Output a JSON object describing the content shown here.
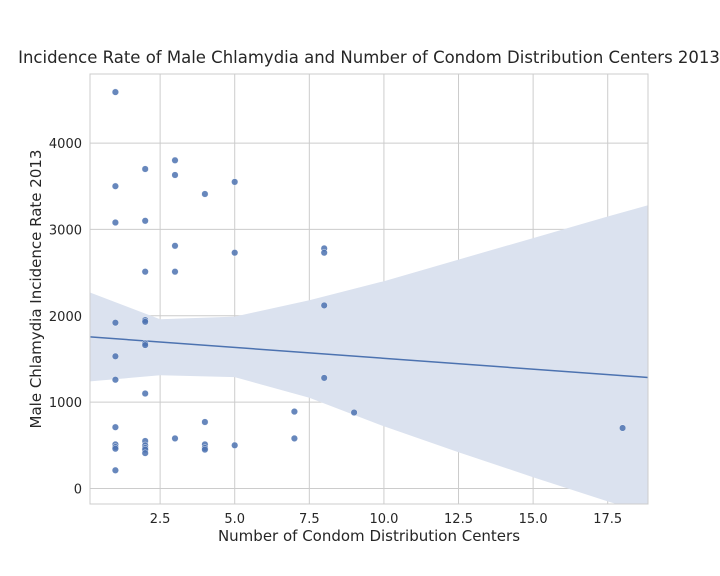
{
  "chart_data": {
    "type": "scatter",
    "title": "Incidence Rate of Male Chlamydia and Number of Condom Distribution Centers 2013",
    "xlabel": "Number of Condom Distribution Centers",
    "ylabel": "Male Chlamydia Incidence Rate 2013",
    "xlim": [
      0.15,
      18.85
    ],
    "ylim": [
      -180,
      4800
    ],
    "xticks": [
      2.5,
      5.0,
      7.5,
      10.0,
      12.5,
      15.0,
      17.5
    ],
    "xtick_labels": [
      "2.5",
      "5.0",
      "7.5",
      "10.0",
      "12.5",
      "15.0",
      "17.5"
    ],
    "yticks": [
      0,
      1000,
      2000,
      3000,
      4000
    ],
    "ytick_labels": [
      "0",
      "1000",
      "2000",
      "3000",
      "4000"
    ],
    "grid": true,
    "point_color": "#4c72b0",
    "band_color": "#dbe2ef",
    "points": [
      [
        1,
        4590
      ],
      [
        1,
        3500
      ],
      [
        1,
        3080
      ],
      [
        1,
        1920
      ],
      [
        1,
        1530
      ],
      [
        1,
        1260
      ],
      [
        1,
        710
      ],
      [
        1,
        510
      ],
      [
        1,
        480
      ],
      [
        1,
        460
      ],
      [
        1,
        210
      ],
      [
        2,
        3700
      ],
      [
        2,
        3100
      ],
      [
        2,
        2510
      ],
      [
        2,
        1950
      ],
      [
        2,
        1930
      ],
      [
        2,
        1680
      ],
      [
        2,
        1660
      ],
      [
        2,
        1100
      ],
      [
        2,
        550
      ],
      [
        2,
        500
      ],
      [
        2,
        470
      ],
      [
        2,
        450
      ],
      [
        2,
        410
      ],
      [
        3,
        3800
      ],
      [
        3,
        3630
      ],
      [
        3,
        2810
      ],
      [
        3,
        2510
      ],
      [
        3,
        580
      ],
      [
        4,
        3410
      ],
      [
        4,
        770
      ],
      [
        4,
        510
      ],
      [
        4,
        470
      ],
      [
        4,
        450
      ],
      [
        5,
        3550
      ],
      [
        5,
        2730
      ],
      [
        5,
        500
      ],
      [
        7,
        890
      ],
      [
        7,
        580
      ],
      [
        8,
        2780
      ],
      [
        8,
        2730
      ],
      [
        8,
        2120
      ],
      [
        8,
        1280
      ],
      [
        9,
        880
      ],
      [
        18,
        700
      ]
    ],
    "regression": {
      "x": [
        0.15,
        18.85
      ],
      "y": [
        1755,
        1285
      ]
    },
    "confidence_band": {
      "x": [
        0.15,
        2.5,
        5.0,
        7.5,
        10.0,
        12.5,
        15.0,
        17.5,
        18.85
      ],
      "upper": [
        2270,
        1960,
        1990,
        2180,
        2400,
        2650,
        2900,
        3150,
        3280
      ],
      "lower": [
        1240,
        1310,
        1290,
        1050,
        720,
        420,
        130,
        -150,
        -290
      ]
    }
  }
}
